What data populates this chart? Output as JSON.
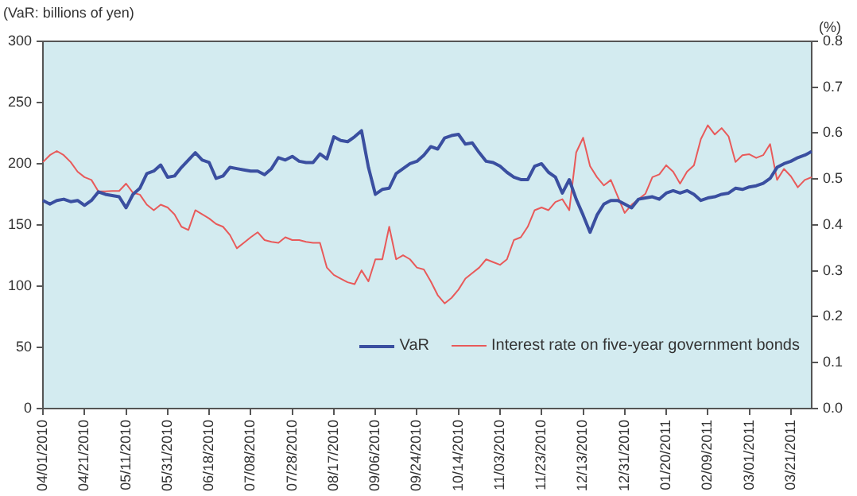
{
  "chart_data": {
    "type": "line",
    "ylabel": "(VaR: billions of yen)",
    "y2label": "(%)",
    "categories": [
      "04/01/2010",
      null,
      null,
      null,
      null,
      null,
      "04/21/2010",
      null,
      null,
      null,
      null,
      null,
      "05/11/2010",
      null,
      null,
      null,
      null,
      null,
      "05/31/2010",
      null,
      null,
      null,
      null,
      null,
      "06/18/2010",
      null,
      null,
      null,
      null,
      null,
      "07/08/2010",
      null,
      null,
      null,
      null,
      null,
      "07/28/2010",
      null,
      null,
      null,
      null,
      null,
      "08/17/2010",
      null,
      null,
      null,
      null,
      null,
      "09/06/2010",
      null,
      null,
      null,
      null,
      null,
      "09/24/2010",
      null,
      null,
      null,
      null,
      null,
      "10/14/2010",
      null,
      null,
      null,
      null,
      null,
      "11/03/2010",
      null,
      null,
      null,
      null,
      null,
      "11/23/2010",
      null,
      null,
      null,
      null,
      null,
      "12/13/2010",
      null,
      null,
      null,
      null,
      null,
      "12/31/2010",
      null,
      null,
      null,
      null,
      null,
      "01/20/2011",
      null,
      null,
      null,
      null,
      null,
      "02/09/2011",
      null,
      null,
      null,
      null,
      null,
      "03/01/2011",
      null,
      null,
      null,
      null,
      null,
      "03/21/2011",
      null,
      null,
      null
    ],
    "series": [
      {
        "name": "VaR",
        "color": "#3a4fa0",
        "values": [
          170,
          167,
          170,
          171,
          169,
          170,
          166,
          170,
          177,
          175,
          174,
          173,
          164,
          175,
          180,
          192,
          194,
          199,
          189,
          190,
          197,
          203,
          209,
          203,
          201,
          188,
          190,
          197,
          196,
          195,
          194,
          194,
          191,
          196,
          205,
          203,
          206,
          202,
          201,
          201,
          208,
          204,
          222,
          219,
          218,
          222,
          227,
          197,
          175,
          179,
          180,
          192,
          196,
          200,
          202,
          207,
          214,
          212,
          221,
          223,
          224,
          216,
          217,
          209,
          202,
          201,
          198,
          193,
          189,
          187,
          187,
          198,
          200,
          193,
          189,
          176,
          187,
          171,
          158,
          144,
          158,
          167,
          170,
          170,
          167,
          164,
          171,
          172,
          173,
          171,
          176,
          178,
          176,
          178,
          175,
          170,
          172,
          173,
          175,
          176,
          180,
          179,
          181,
          182,
          184,
          188,
          197,
          200,
          202,
          205,
          207,
          210
        ]
      },
      {
        "name": "Interest rate on five-year government bonds",
        "color": "#e85a5a",
        "axis": "y2",
        "values": [
          0.537,
          0.552,
          0.561,
          0.552,
          0.537,
          0.516,
          0.504,
          0.498,
          0.473,
          0.473,
          0.474,
          0.474,
          0.49,
          0.47,
          0.466,
          0.444,
          0.432,
          0.444,
          0.438,
          0.423,
          0.396,
          0.389,
          0.432,
          0.423,
          0.414,
          0.402,
          0.396,
          0.378,
          0.349,
          0.361,
          0.373,
          0.384,
          0.367,
          0.363,
          0.361,
          0.373,
          0.367,
          0.367,
          0.363,
          0.361,
          0.361,
          0.307,
          0.291,
          0.283,
          0.275,
          0.271,
          0.301,
          0.277,
          0.325,
          0.325,
          0.396,
          0.325,
          0.334,
          0.325,
          0.307,
          0.303,
          0.277,
          0.247,
          0.229,
          0.241,
          0.259,
          0.283,
          0.295,
          0.307,
          0.325,
          0.319,
          0.313,
          0.325,
          0.367,
          0.373,
          0.396,
          0.432,
          0.438,
          0.432,
          0.45,
          0.456,
          0.432,
          0.558,
          0.59,
          0.528,
          0.504,
          0.486,
          0.498,
          0.462,
          0.426,
          0.444,
          0.456,
          0.468,
          0.504,
          0.51,
          0.53,
          0.516,
          0.49,
          0.516,
          0.53,
          0.587,
          0.617,
          0.597,
          0.611,
          0.593,
          0.537,
          0.552,
          0.554,
          0.546,
          0.552,
          0.576,
          0.498,
          0.522,
          0.506,
          0.482,
          0.498,
          0.504
        ]
      }
    ],
    "ylim": [
      0,
      300
    ],
    "yticks": [
      0,
      50,
      100,
      150,
      200,
      250,
      300
    ],
    "y2lim": [
      0,
      0.8
    ],
    "y2ticks": [
      {
        "value": 0,
        "label": "0.0"
      },
      {
        "value": 0.1,
        "label": "0.1"
      },
      {
        "value": 0.2,
        "label": "0.2"
      },
      {
        "value": 0.3,
        "label": "0.3"
      },
      {
        "value": 0.4,
        "label": "0.4"
      },
      {
        "value": 0.5,
        "label": "0.5"
      },
      {
        "value": 0.6,
        "label": "0.6"
      },
      {
        "value": 0.7,
        "label": "0.7"
      },
      {
        "value": 0.8,
        "label": "0.8"
      }
    ],
    "grid": false,
    "legend": "bottom right",
    "marker": "none",
    "line_style": "solid"
  }
}
